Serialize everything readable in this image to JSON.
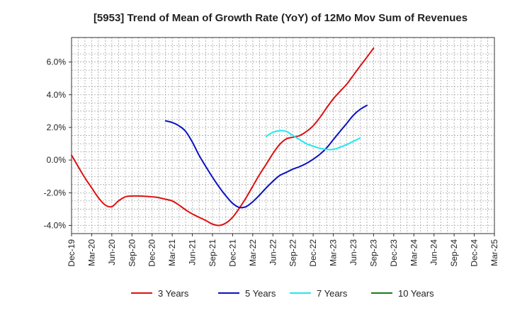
{
  "chart_data": {
    "type": "line",
    "title": "[5953]  Trend of Mean of Growth Rate (YoY) of 12Mo Mov Sum of Revenues",
    "xlabel": "",
    "ylabel": "",
    "ylim": [
      -4.5,
      7.5
    ],
    "yticks": [
      -4,
      -2,
      0,
      2,
      4,
      6
    ],
    "ytick_labels": [
      "-4.0%",
      "-2.0%",
      "0.0%",
      "2.0%",
      "4.0%",
      "6.0%"
    ],
    "categories": [
      "Dec-19",
      "Mar-20",
      "Jun-20",
      "Sep-20",
      "Dec-20",
      "Mar-21",
      "Jun-21",
      "Sep-21",
      "Dec-21",
      "Mar-22",
      "Jun-22",
      "Sep-22",
      "Dec-22",
      "Mar-23",
      "Jun-23",
      "Sep-23",
      "Dec-23",
      "Mar-24",
      "Jun-24",
      "Sep-24",
      "Dec-24",
      "Mar-25"
    ],
    "grid": true,
    "legend_position": "bottom",
    "series": [
      {
        "name": "3 Years",
        "color": "#dd1111",
        "points": [
          [
            0,
            0.3
          ],
          [
            0.33,
            -0.4
          ],
          [
            0.67,
            -1.1
          ],
          [
            1,
            -1.7
          ],
          [
            1.33,
            -2.3
          ],
          [
            1.67,
            -2.75
          ],
          [
            2,
            -2.85
          ],
          [
            2.33,
            -2.5
          ],
          [
            2.67,
            -2.25
          ],
          [
            3,
            -2.2
          ],
          [
            3.33,
            -2.2
          ],
          [
            3.67,
            -2.22
          ],
          [
            4,
            -2.25
          ],
          [
            4.33,
            -2.3
          ],
          [
            4.67,
            -2.4
          ],
          [
            5,
            -2.5
          ],
          [
            5.33,
            -2.75
          ],
          [
            5.67,
            -3.05
          ],
          [
            6,
            -3.3
          ],
          [
            6.33,
            -3.5
          ],
          [
            6.67,
            -3.7
          ],
          [
            7,
            -3.92
          ],
          [
            7.33,
            -4.0
          ],
          [
            7.67,
            -3.85
          ],
          [
            8,
            -3.5
          ],
          [
            8.33,
            -2.95
          ],
          [
            8.67,
            -2.3
          ],
          [
            9,
            -1.6
          ],
          [
            9.33,
            -0.9
          ],
          [
            9.67,
            -0.25
          ],
          [
            10,
            0.4
          ],
          [
            10.33,
            0.95
          ],
          [
            10.67,
            1.3
          ],
          [
            11,
            1.4
          ],
          [
            11.33,
            1.5
          ],
          [
            11.67,
            1.75
          ],
          [
            12,
            2.1
          ],
          [
            12.33,
            2.6
          ],
          [
            12.67,
            3.2
          ],
          [
            13,
            3.75
          ],
          [
            13.33,
            4.2
          ],
          [
            13.67,
            4.65
          ],
          [
            14,
            5.2
          ],
          [
            14.33,
            5.75
          ],
          [
            14.67,
            6.3
          ],
          [
            15,
            6.85
          ]
        ]
      },
      {
        "name": "5 Years",
        "color": "#0a12c0",
        "points": [
          [
            4.67,
            2.4
          ],
          [
            5,
            2.3
          ],
          [
            5.33,
            2.1
          ],
          [
            5.67,
            1.75
          ],
          [
            6,
            1.1
          ],
          [
            6.33,
            0.3
          ],
          [
            6.67,
            -0.4
          ],
          [
            7,
            -1.05
          ],
          [
            7.33,
            -1.65
          ],
          [
            7.67,
            -2.2
          ],
          [
            8,
            -2.65
          ],
          [
            8.33,
            -2.9
          ],
          [
            8.67,
            -2.85
          ],
          [
            9,
            -2.55
          ],
          [
            9.33,
            -2.15
          ],
          [
            9.67,
            -1.7
          ],
          [
            10,
            -1.3
          ],
          [
            10.33,
            -0.95
          ],
          [
            10.67,
            -0.75
          ],
          [
            11,
            -0.55
          ],
          [
            11.33,
            -0.4
          ],
          [
            11.67,
            -0.2
          ],
          [
            12,
            0.05
          ],
          [
            12.33,
            0.35
          ],
          [
            12.67,
            0.75
          ],
          [
            13,
            1.25
          ],
          [
            13.33,
            1.75
          ],
          [
            13.67,
            2.25
          ],
          [
            14,
            2.75
          ],
          [
            14.33,
            3.1
          ],
          [
            14.67,
            3.35
          ]
        ]
      },
      {
        "name": "7 Years",
        "color": "#22e8ee",
        "points": [
          [
            9.67,
            1.45
          ],
          [
            10,
            1.7
          ],
          [
            10.33,
            1.8
          ],
          [
            10.67,
            1.75
          ],
          [
            11,
            1.5
          ],
          [
            11.33,
            1.25
          ],
          [
            11.67,
            1.0
          ],
          [
            12,
            0.85
          ],
          [
            12.33,
            0.72
          ],
          [
            12.67,
            0.65
          ],
          [
            13,
            0.65
          ],
          [
            13.33,
            0.78
          ],
          [
            13.67,
            0.95
          ],
          [
            14,
            1.15
          ],
          [
            14.33,
            1.35
          ]
        ]
      },
      {
        "name": "10 Years",
        "color": "#1a7a1a",
        "points": []
      }
    ]
  }
}
